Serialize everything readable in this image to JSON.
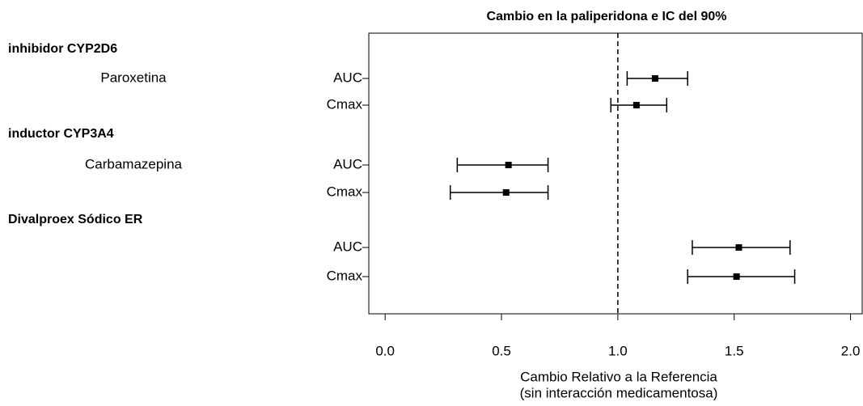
{
  "chart_data": {
    "type": "forest",
    "title": "Cambio en la paliperidona e IC del 90%",
    "groups": [
      {
        "name": "inhibidor CYP2D6",
        "drug": "Paroxetina",
        "rows": [
          {
            "label": "AUC",
            "value": 1.16,
            "ci": [
              1.04,
              1.3
            ]
          },
          {
            "label": "Cmax",
            "value": 1.08,
            "ci": [
              0.97,
              1.21
            ]
          }
        ]
      },
      {
        "name": "inductor CYP3A4",
        "drug": "Carbamazepina",
        "rows": [
          {
            "label": "AUC",
            "value": 0.53,
            "ci": [
              0.31,
              0.7
            ]
          },
          {
            "label": "Cmax",
            "value": 0.52,
            "ci": [
              0.28,
              0.7
            ]
          }
        ]
      },
      {
        "name": "Divalproex Sódico ER",
        "rows": [
          {
            "label": "AUC",
            "value": 1.52,
            "ci": [
              1.32,
              1.74
            ]
          },
          {
            "label": "Cmax",
            "value": 1.51,
            "ci": [
              1.3,
              1.76
            ]
          }
        ]
      }
    ],
    "reference_line": 1,
    "xlim": [
      -0.07,
      2.05
    ],
    "xticks": [
      {
        "value": 0,
        "label": "0.0"
      },
      {
        "value": 0.5,
        "label": "0.5"
      },
      {
        "value": 1,
        "label": "1.0"
      },
      {
        "value": 1.5,
        "label": "1.5"
      },
      {
        "value": 2,
        "label": "2.0"
      }
    ],
    "x_label": [
      "Cambio Relativo a la Referencia",
      "(sin interacción medicamentosa)"
    ],
    "color": "#000000"
  }
}
